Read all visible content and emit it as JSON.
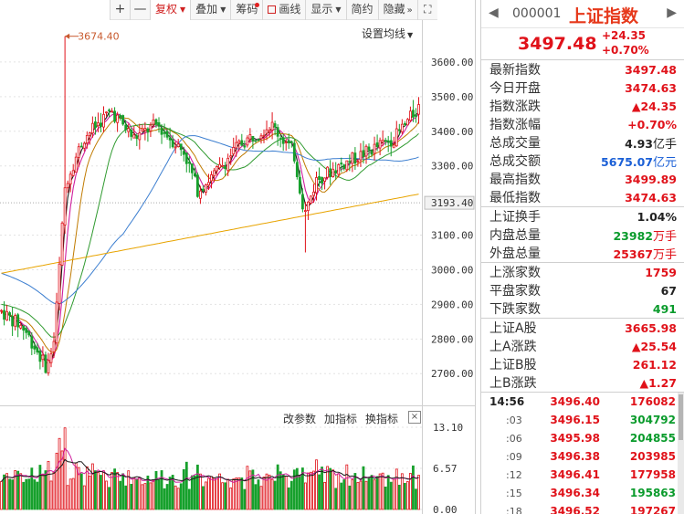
{
  "toolbar": {
    "plus": "+",
    "minus": "—",
    "adjust": "复权",
    "overlay": "叠加",
    "chips": "筹码",
    "draw": "画线",
    "display": "显示",
    "brief": "简约",
    "hide": "隐藏"
  },
  "chart": {
    "settings": "设置均线",
    "high_marker": "3674.40",
    "price_labels": [
      "3600.00",
      "3500.00",
      "3400.00",
      "3300.00",
      "3193.40",
      "3100.00",
      "3000.00",
      "2900.00",
      "2800.00",
      "2700.00"
    ],
    "volume_labels": [
      "13.10",
      "6.57",
      "0.00"
    ],
    "indicator_params": "改参数",
    "add_indicator": "加指标",
    "switch_indicator": "换指标",
    "close_icon": "×"
  },
  "chart_data": {
    "type": "candlestick",
    "y_range": [
      2640,
      3700
    ],
    "current_price_line": 3193.4,
    "period_high": 3674.4,
    "period_low": 2700,
    "volume_range": [
      0,
      13.1
    ],
    "moving_average_colors": [
      "#1a1a1a",
      "#d01f9f",
      "#c07a00",
      "#2f9a2f",
      "#3d7fd0",
      "#e8a400"
    ],
    "up_color": "#e0121a",
    "down_color": "#17a02c"
  },
  "panel": {
    "code": "000001",
    "name": "上证指数",
    "price": "3497.48",
    "change": "+24.35",
    "change_pct": "+0.70%",
    "rows1": [
      {
        "label": "最新指数",
        "value": "3497.48",
        "color": "red"
      },
      {
        "label": "今日开盘",
        "value": "3474.63",
        "color": "red"
      },
      {
        "label": "指数涨跌",
        "value": "▲24.35",
        "color": "red"
      },
      {
        "label": "指数涨幅",
        "value": "+0.70%",
        "color": "red"
      },
      {
        "label": "总成交量",
        "value": "4.93",
        "unit": "亿手",
        "color": "dark",
        "unit_color": "dark"
      },
      {
        "label": "总成交额",
        "value": "5675.07",
        "unit": "亿元",
        "color": "blue",
        "unit_color": "blue"
      },
      {
        "label": "最高指数",
        "value": "3499.89",
        "color": "red"
      },
      {
        "label": "最低指数",
        "value": "3474.63",
        "color": "red"
      }
    ],
    "rows2": [
      {
        "label": "上证换手",
        "value": "1.04%",
        "color": "dark"
      },
      {
        "label": "内盘总量",
        "value": "23982",
        "unit": "万手",
        "color": "green",
        "unit_color": "red"
      },
      {
        "label": "外盘总量",
        "value": "25367",
        "unit": "万手",
        "color": "red",
        "unit_color": "red"
      }
    ],
    "rows3": [
      {
        "label": "上涨家数",
        "value": "1759",
        "color": "red"
      },
      {
        "label": "平盘家数",
        "value": "67",
        "color": "dark"
      },
      {
        "label": "下跌家数",
        "value": "491",
        "color": "green"
      }
    ],
    "rows4": [
      {
        "label": "上证A股",
        "value": "3665.98",
        "color": "red"
      },
      {
        "label": "上A涨跌",
        "value": "▲25.54",
        "color": "red"
      },
      {
        "label": "上证B股",
        "value": "261.12",
        "color": "red"
      },
      {
        "label": "上B涨跌",
        "value": "▲1.27",
        "color": "red"
      }
    ],
    "ticks": [
      {
        "time": "14:56",
        "price": "3496.40",
        "vol": "176082",
        "vol_color": "red"
      },
      {
        "time": ":03",
        "price": "3496.15",
        "vol": "304792",
        "vol_color": "green"
      },
      {
        "time": ":06",
        "price": "3495.98",
        "vol": "204855",
        "vol_color": "green"
      },
      {
        "time": ":09",
        "price": "3496.38",
        "vol": "203985",
        "vol_color": "red"
      },
      {
        "time": ":12",
        "price": "3496.41",
        "vol": "177958",
        "vol_color": "red"
      },
      {
        "time": ":15",
        "price": "3496.34",
        "vol": "195863",
        "vol_color": "green"
      },
      {
        "time": ":18",
        "price": "3496.52",
        "vol": "197267",
        "vol_color": "red"
      }
    ]
  }
}
